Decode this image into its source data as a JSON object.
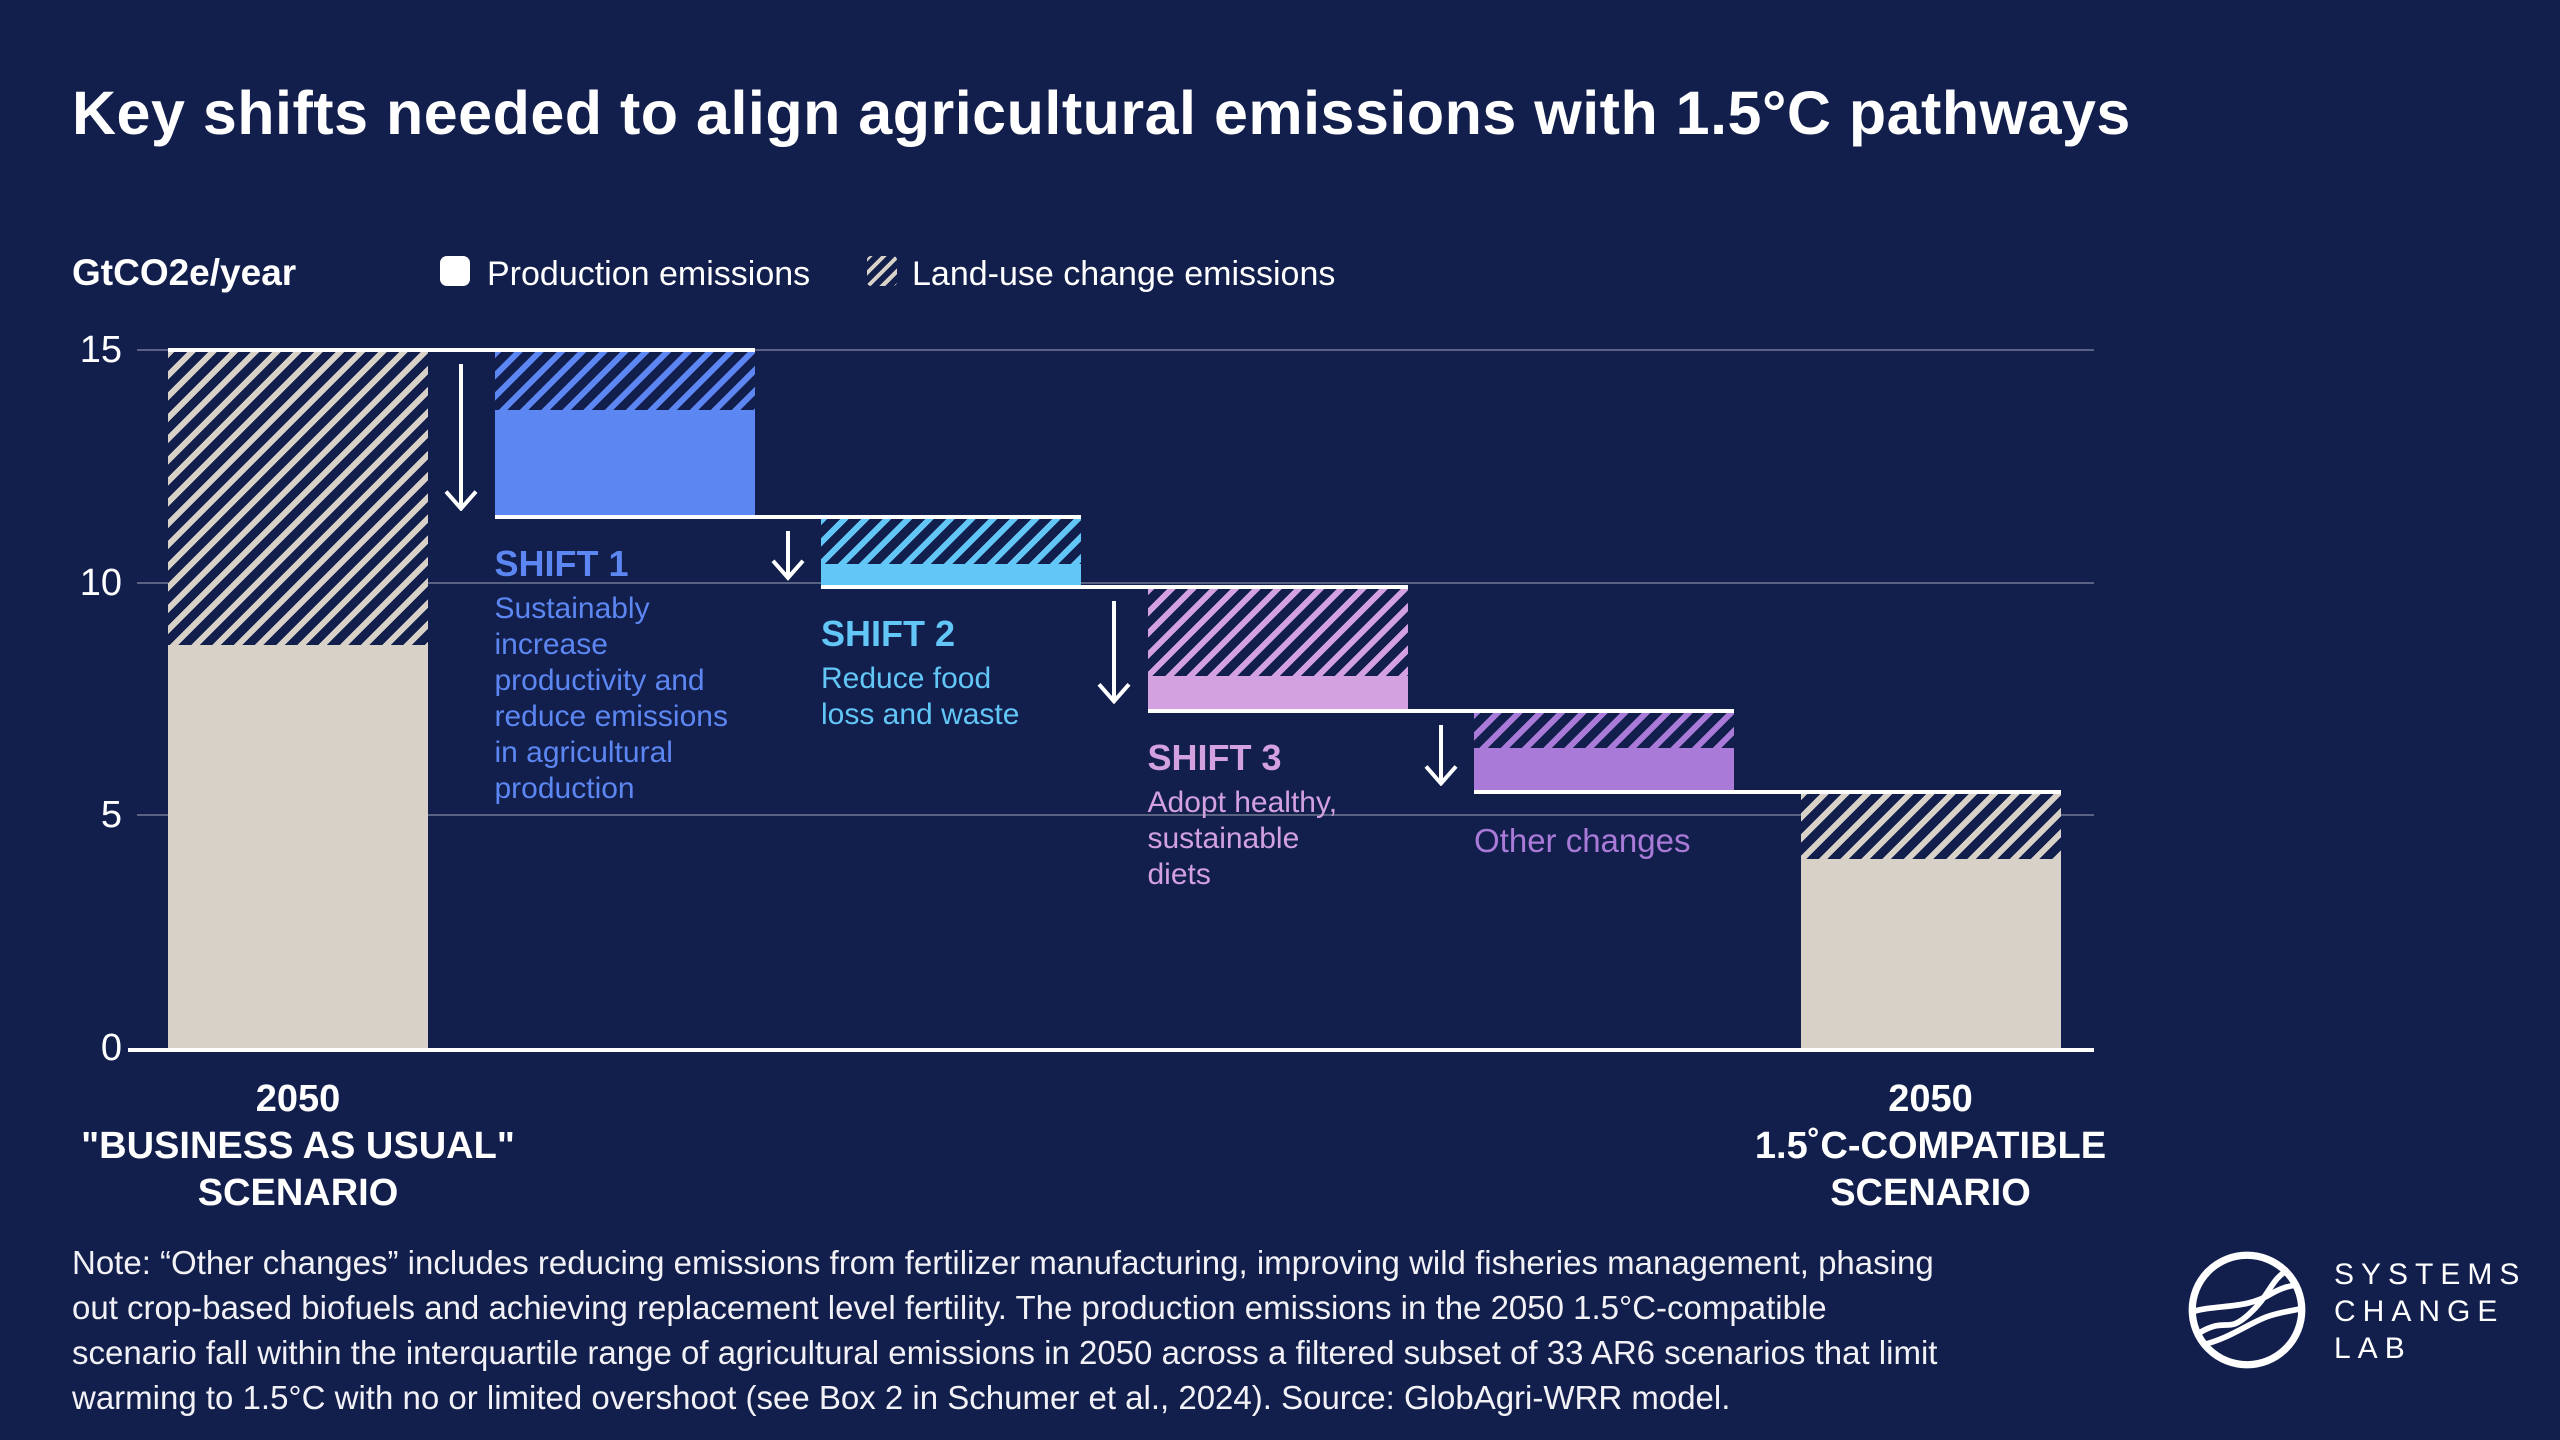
{
  "header": {
    "title": "Key shifts needed to align agricultural emissions with 1.5°C pathways"
  },
  "legend": {
    "axis_unit": "GtCO2e/year",
    "items": [
      {
        "label": "Production emissions",
        "swatch": "solid",
        "color": "#ffffff"
      },
      {
        "label": "Land-use change emissions",
        "swatch": "hatched",
        "color": "#d8d1c7"
      }
    ]
  },
  "chart_data": {
    "type": "bar",
    "subtype": "waterfall-stacked",
    "unit": "GtCO2e/year",
    "ylim": [
      0,
      15
    ],
    "yticks": [
      0,
      5,
      10,
      15
    ],
    "grid": true,
    "legend_position": "top",
    "segments_legend": [
      "Production emissions",
      "Land-use change emissions"
    ],
    "columns": [
      {
        "id": "bau2050",
        "kind": "total",
        "category": "2050\n\"BUSINESS AS USUAL\"\nSCENARIO",
        "top": 15,
        "bottom": 0,
        "production": 8.65,
        "land_use_change": 6.35,
        "color": "#d8d1c7"
      },
      {
        "id": "shift1",
        "kind": "reduction",
        "label": "SHIFT 1",
        "description": "Sustainably\nincrease\nproductivity and\nreduce emissions\nin agricultural\nproduction",
        "top": 15,
        "bottom": 11.4,
        "land_use_change": 1.3,
        "production": 2.3,
        "color": "#5c86f2"
      },
      {
        "id": "shift2",
        "kind": "reduction",
        "label": "SHIFT 2",
        "description": "Reduce food\nloss and waste",
        "top": 11.4,
        "bottom": 9.9,
        "land_use_change": 1.0,
        "production": 0.5,
        "color": "#62c6f7"
      },
      {
        "id": "shift3",
        "kind": "reduction",
        "label": "SHIFT 3",
        "description": "Adopt healthy,\nsustainable\ndiets",
        "top": 9.9,
        "bottom": 7.25,
        "land_use_change": 1.9,
        "production": 0.75,
        "color": "#d3a0e0"
      },
      {
        "id": "other",
        "kind": "reduction",
        "label": "Other changes",
        "top": 7.25,
        "bottom": 5.5,
        "land_use_change": 0.8,
        "production": 0.95,
        "color": "#a97ad8"
      },
      {
        "id": "compatible2050",
        "kind": "total",
        "category": "2050\n1.5˚C-COMPATIBLE\nSCENARIO",
        "top": 5.5,
        "bottom": 0,
        "production": 4.05,
        "land_use_change": 1.45,
        "color": "#d8d1c7"
      }
    ]
  },
  "note": {
    "text": "Note: “Other changes” includes reducing emissions from fertilizer manufacturing, improving wild fisheries management, phasing\nout crop-based biofuels and achieving replacement level fertility. The production emissions in the 2050 1.5°C-compatible\nscenario fall within the interquartile range of agricultural emissions in 2050 across a filtered subset of 33 AR6 scenarios that limit\nwarming to 1.5°C with no or limited overshoot (see Box 2 in Schumer et al., 2024). Source: GlobAgri-WRR model."
  },
  "brand": {
    "name": "SYSTEMS\nCHANGE\nLAB"
  },
  "colors": {
    "background": "#121f4c",
    "beige": "#d8d1c7",
    "axis": "#ffffff",
    "grid": "rgba(255,255,255,0.30)"
  }
}
